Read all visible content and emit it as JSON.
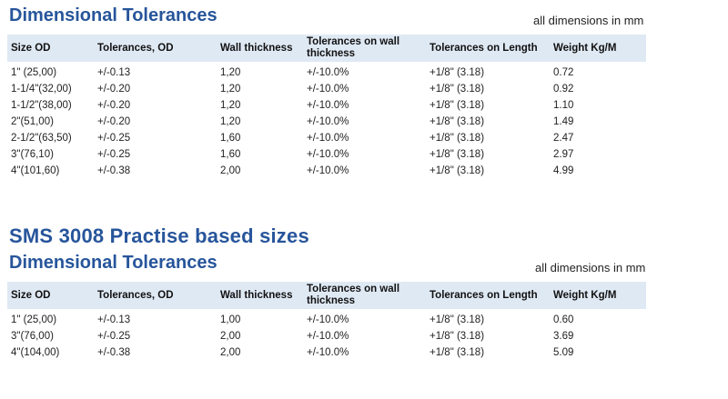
{
  "section1": {
    "title": "Dimensional Tolerances",
    "unit_note": "all dimensions in mm",
    "headers": [
      "Size OD",
      "Tolerances, OD",
      "Wall thickness",
      "Tolerances on wall thickness",
      "Tolerances on Length",
      "Weight Kg/M"
    ],
    "rows": [
      [
        "1\" (25,00)",
        "+/-0.13",
        "1,20",
        "+/-10.0%",
        "+1/8\" (3.18)",
        "0.72"
      ],
      [
        "1-1/4\"(32,00)",
        "+/-0.20",
        "1,20",
        "+/-10.0%",
        "+1/8\" (3.18)",
        "0.92"
      ],
      [
        "1-1/2\"(38,00)",
        "+/-0.20",
        "1,20",
        "+/-10.0%",
        "+1/8\" (3.18)",
        "1.10"
      ],
      [
        "2\"(51,00)",
        "+/-0.20",
        "1,20",
        "+/-10.0%",
        "+1/8\" (3.18)",
        "1.49"
      ],
      [
        "2-1/2\"(63,50)",
        "+/-0.25",
        "1,60",
        "+/-10.0%",
        "+1/8\" (3.18)",
        "2.47"
      ],
      [
        "3\"(76,10)",
        "+/-0.25",
        "1,60",
        "+/-10.0%",
        "+1/8\" (3.18)",
        "2.97"
      ],
      [
        "4\"(101,60)",
        "+/-0.38",
        "2,00",
        "+/-10.0%",
        "+1/8\" (3.18)",
        "4.99"
      ]
    ]
  },
  "section2": {
    "heading": "SMS 3008 Practise based sizes",
    "title": "Dimensional Tolerances",
    "unit_note": "all dimensions in mm",
    "headers": [
      "Size OD",
      "Tolerances, OD",
      "Wall thickness",
      "Tolerances on wall thickness",
      "Tolerances on Length",
      "Weight Kg/M"
    ],
    "rows": [
      [
        "1\" (25,00)",
        "+/-0.13",
        "1,00",
        "+/-10.0%",
        "+1/8\" (3.18)",
        "0.60"
      ],
      [
        "3\"(76,00)",
        "+/-0.25",
        "2,00",
        "+/-10.0%",
        "+1/8\" (3.18)",
        "3.69"
      ],
      [
        "4\"(104,00)",
        "+/-0.38",
        "2,00",
        "+/-10.0%",
        "+1/8\" (3.18)",
        "5.09"
      ]
    ]
  }
}
